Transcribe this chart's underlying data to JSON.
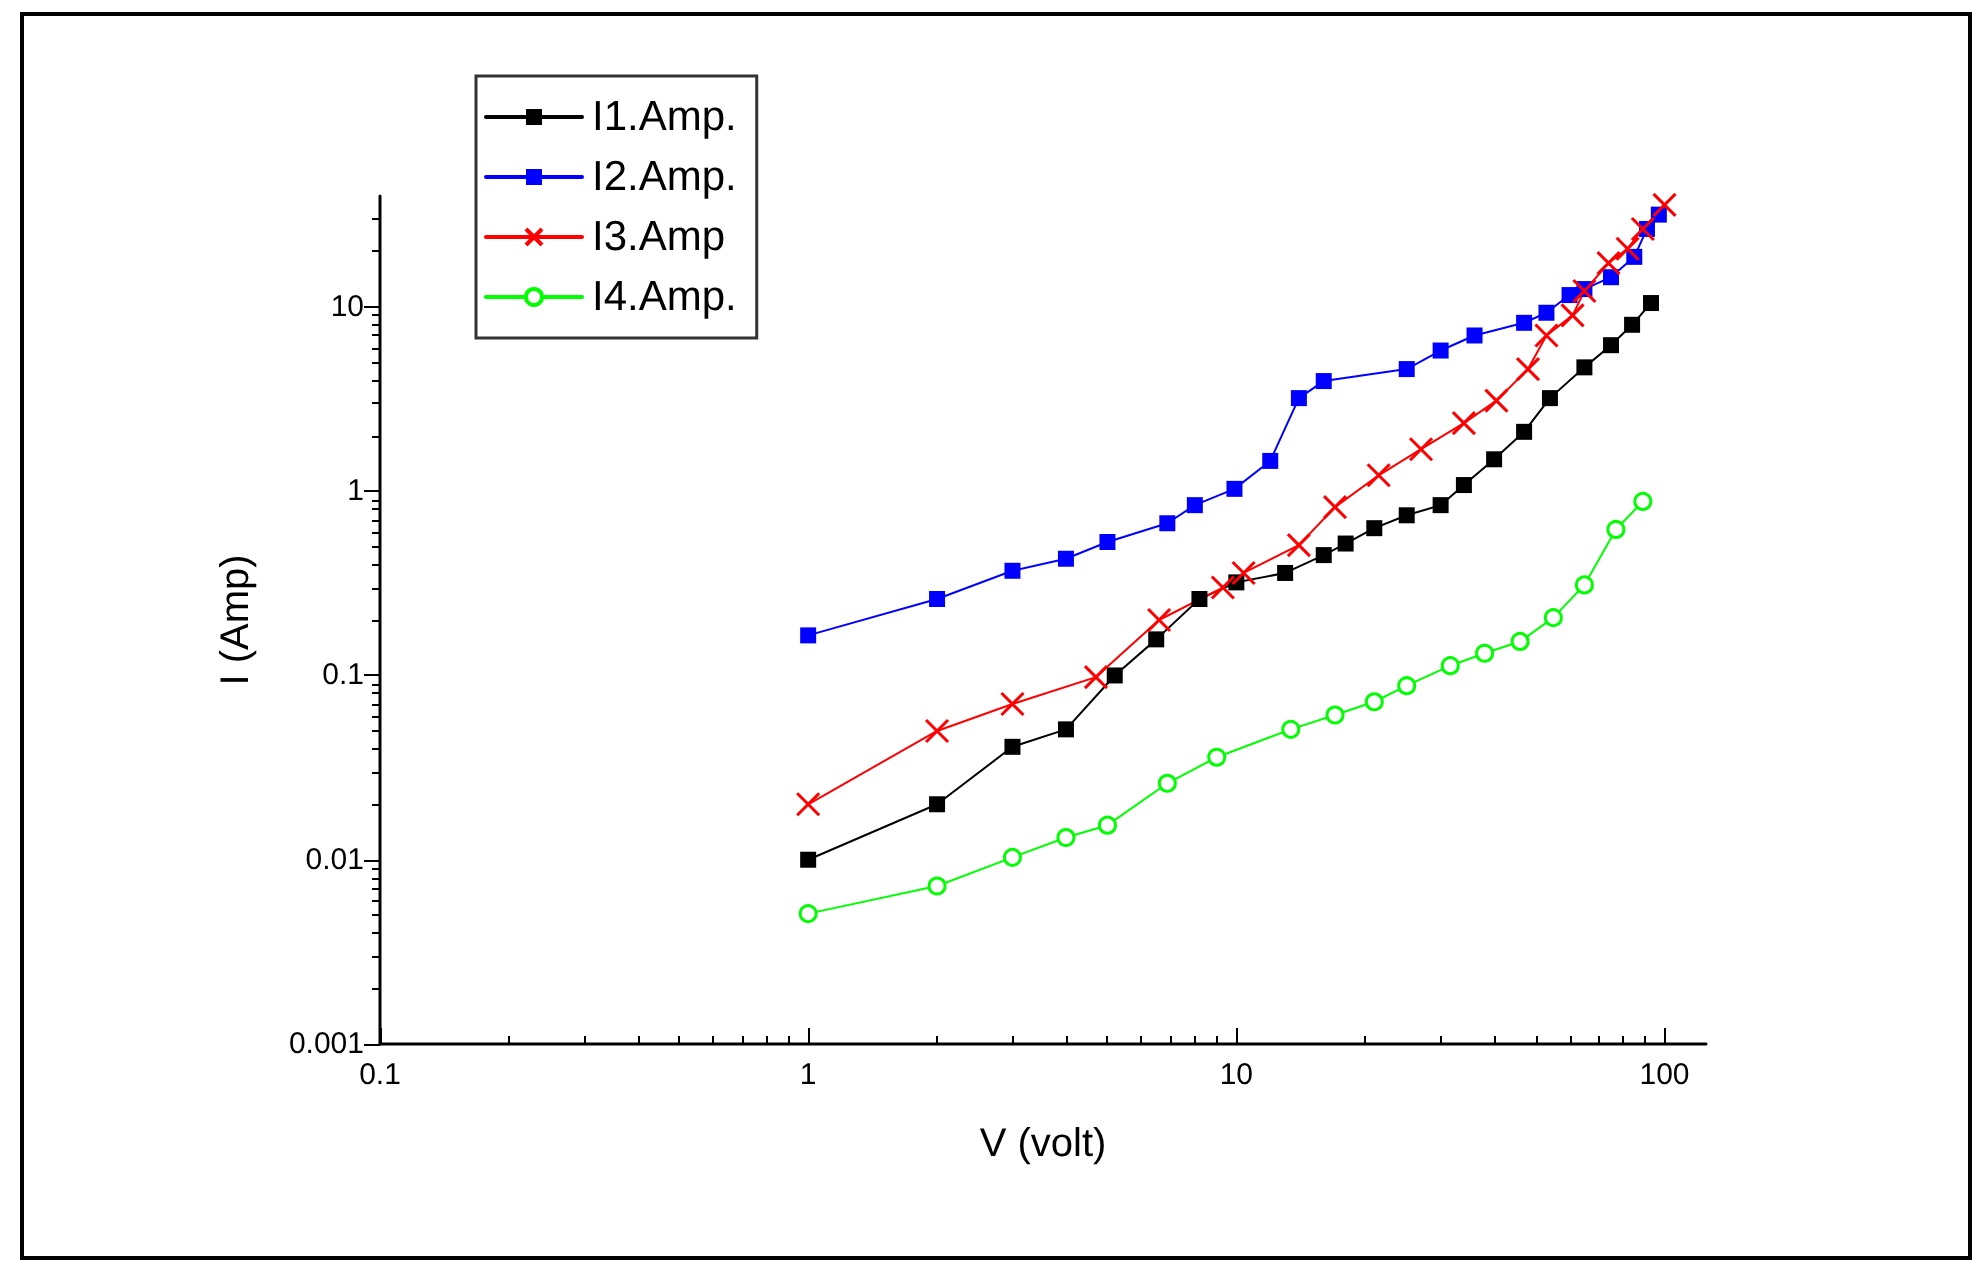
{
  "chart_data": {
    "type": "line",
    "xlabel": "V (volt)",
    "ylabel": "I (Amp)",
    "log": "xy",
    "grid": false,
    "legend": "top left",
    "line_style": "solid",
    "xlim": [
      0.1,
      125
    ],
    "xticks": [
      0.1,
      1,
      10,
      100
    ],
    "ylim": [
      0.001,
      40
    ],
    "yticks": [
      0.001,
      0.01,
      0.1,
      1,
      10
    ],
    "series": [
      {
        "name": "I1.Amp.",
        "color": "#000000",
        "marker": "square",
        "x": [
          1,
          2,
          3,
          4,
          5.2,
          6.5,
          8.2,
          10,
          13,
          16,
          18,
          21,
          25,
          30,
          34,
          40,
          47,
          54,
          65,
          75,
          84,
          93
        ],
        "values": [
          0.01,
          0.02,
          0.041,
          0.051,
          0.1,
          0.157,
          0.26,
          0.32,
          0.36,
          0.45,
          0.52,
          0.63,
          0.74,
          0.84,
          1.08,
          1.49,
          2.1,
          3.2,
          4.7,
          6.2,
          8,
          10.5
        ]
      },
      {
        "name": "I2.Amp.",
        "color": "#0000ff",
        "marker": "square",
        "x": [
          1,
          2,
          3,
          4,
          5,
          6.9,
          8,
          9.9,
          12,
          14,
          16,
          25,
          30,
          36,
          47,
          53,
          60,
          65,
          75,
          85,
          91,
          97
        ],
        "values": [
          0.165,
          0.26,
          0.37,
          0.43,
          0.53,
          0.67,
          0.84,
          1.03,
          1.46,
          3.2,
          3.96,
          4.6,
          5.8,
          7,
          8.2,
          9.3,
          11.6,
          12.5,
          14.5,
          18.7,
          26.5,
          31.7
        ]
      },
      {
        "name": "I3.Amp",
        "color": "#ff0000",
        "marker": "cross",
        "x": [
          1,
          2,
          3,
          4.7,
          6.6,
          9.3,
          10.4,
          14,
          17,
          21.5,
          27,
          34,
          40.5,
          48,
          53,
          61,
          65,
          74,
          82,
          89,
          100
        ],
        "values": [
          0.02,
          0.05,
          0.07,
          0.098,
          0.2,
          0.3,
          0.36,
          0.51,
          0.82,
          1.22,
          1.69,
          2.34,
          3.1,
          4.6,
          7,
          9,
          12.2,
          17.3,
          20.7,
          26.5,
          35.8
        ]
      },
      {
        "name": "I4.Amp.",
        "color": "#00ff00",
        "marker": "circle",
        "x": [
          1,
          2,
          3,
          4,
          5,
          6.9,
          9,
          13.4,
          17,
          21,
          25,
          31.6,
          38,
          46,
          55,
          65,
          77,
          89
        ],
        "values": [
          0.0051,
          0.0072,
          0.0103,
          0.0132,
          0.0154,
          0.026,
          0.036,
          0.051,
          0.061,
          0.072,
          0.088,
          0.113,
          0.132,
          0.153,
          0.206,
          0.31,
          0.62,
          0.88
        ]
      }
    ]
  }
}
